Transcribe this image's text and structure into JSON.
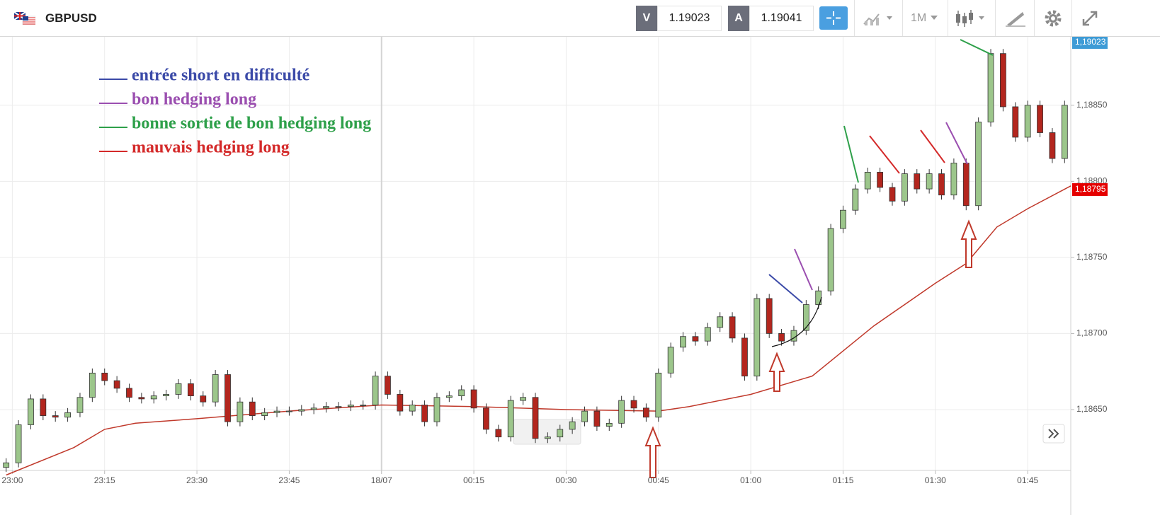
{
  "header": {
    "symbol": "GBPUSD",
    "sell_label": "V",
    "sell_price": "1.19023",
    "buy_label": "A",
    "buy_price": "1.19041",
    "timeframe": "1M"
  },
  "chart_data": {
    "type": "candlestick",
    "x": [
      "22:59",
      "23:01",
      "23:03",
      "23:05",
      "23:07",
      "23:09",
      "23:11",
      "23:13",
      "23:15",
      "23:17",
      "23:19",
      "23:21",
      "23:23",
      "23:25",
      "23:27",
      "23:29",
      "23:31",
      "23:33",
      "23:35",
      "23:37",
      "23:39",
      "23:41",
      "23:43",
      "23:45",
      "23:47",
      "23:49",
      "23:51",
      "23:53",
      "23:55",
      "23:57",
      "23:59",
      "00:01",
      "00:03",
      "00:05",
      "00:07",
      "00:09",
      "00:11",
      "00:13",
      "00:15",
      "00:17",
      "00:19",
      "00:21",
      "00:23",
      "00:25",
      "00:27",
      "00:29",
      "00:31",
      "00:33",
      "00:35",
      "00:37",
      "00:39",
      "00:41",
      "00:43",
      "00:45",
      "00:47",
      "00:49",
      "00:51",
      "00:53",
      "00:55",
      "00:57",
      "00:59",
      "01:01",
      "01:03",
      "01:05",
      "01:07",
      "01:09",
      "01:11",
      "01:13",
      "01:15",
      "01:17",
      "01:19",
      "01:21",
      "01:23",
      "01:25",
      "01:27",
      "01:29",
      "01:31",
      "01:33",
      "01:35",
      "01:37",
      "01:39",
      "01:41",
      "01:43",
      "01:45",
      "01:47",
      "01:49",
      "01:51"
    ],
    "open": [
      1.18612,
      1.18615,
      1.1864,
      1.18657,
      1.18646,
      1.18645,
      1.18648,
      1.18658,
      1.18674,
      1.18669,
      1.18664,
      1.18658,
      1.18657,
      1.18659,
      1.1866,
      1.18667,
      1.18659,
      1.18655,
      1.18673,
      1.18642,
      1.18655,
      1.18646,
      1.18648,
      1.18649,
      1.18649,
      1.1865,
      1.18651,
      1.18652,
      1.18652,
      1.18653,
      1.18653,
      1.18672,
      1.1866,
      1.18649,
      1.18653,
      1.18642,
      1.18658,
      1.18659,
      1.18663,
      1.18651,
      1.18637,
      1.18632,
      1.18656,
      1.18658,
      1.18631,
      1.18632,
      1.18637,
      1.18642,
      1.18649,
      1.18639,
      1.18641,
      1.18656,
      1.18651,
      1.18645,
      1.18674,
      1.18691,
      1.18698,
      1.18695,
      1.18704,
      1.18711,
      1.18697,
      1.18672,
      1.18723,
      1.187,
      1.18695,
      1.18702,
      1.18719,
      1.18728,
      1.18769,
      1.18781,
      1.18795,
      1.18806,
      1.18796,
      1.18787,
      1.18805,
      1.18795,
      1.18805,
      1.18791,
      1.18812,
      1.18784,
      1.18839,
      1.18884,
      1.18849,
      1.18829,
      1.1885,
      1.18832,
      1.18815
    ],
    "high": [
      1.18618,
      1.18643,
      1.1866,
      1.1866,
      1.18649,
      1.18651,
      1.18661,
      1.18677,
      1.18677,
      1.18672,
      1.18667,
      1.18661,
      1.18662,
      1.18663,
      1.1867,
      1.1867,
      1.18662,
      1.18676,
      1.18676,
      1.18658,
      1.18658,
      1.18651,
      1.18652,
      1.18652,
      1.18653,
      1.18654,
      1.18655,
      1.18655,
      1.18656,
      1.18656,
      1.18675,
      1.18675,
      1.18663,
      1.18656,
      1.18656,
      1.18661,
      1.18662,
      1.18666,
      1.18666,
      1.18654,
      1.1864,
      1.18659,
      1.18661,
      1.18661,
      1.18635,
      1.1864,
      1.18645,
      1.18652,
      1.18652,
      1.18644,
      1.18659,
      1.18659,
      1.18654,
      1.18677,
      1.18694,
      1.18701,
      1.18701,
      1.18707,
      1.18714,
      1.18714,
      1.187,
      1.18726,
      1.18726,
      1.18703,
      1.18705,
      1.18722,
      1.18731,
      1.18772,
      1.18784,
      1.18798,
      1.18809,
      1.18809,
      1.18799,
      1.18808,
      1.18808,
      1.18808,
      1.18808,
      1.18815,
      1.18815,
      1.18842,
      1.18887,
      1.18887,
      1.18852,
      1.18853,
      1.18853,
      1.18835,
      1.18853
    ],
    "low": [
      1.18609,
      1.18612,
      1.18637,
      1.18643,
      1.18642,
      1.18642,
      1.18645,
      1.18655,
      1.18666,
      1.18661,
      1.18655,
      1.18654,
      1.18654,
      1.18656,
      1.18657,
      1.18656,
      1.18652,
      1.18652,
      1.18639,
      1.18639,
      1.18643,
      1.18643,
      1.18645,
      1.18646,
      1.18646,
      1.18647,
      1.18648,
      1.18649,
      1.18649,
      1.1865,
      1.1865,
      1.18657,
      1.18646,
      1.18646,
      1.18639,
      1.18639,
      1.18655,
      1.18656,
      1.18648,
      1.18634,
      1.18629,
      1.18629,
      1.18653,
      1.18628,
      1.18628,
      1.18629,
      1.18634,
      1.18639,
      1.18636,
      1.18636,
      1.18638,
      1.18648,
      1.18642,
      1.18642,
      1.18671,
      1.18688,
      1.18692,
      1.18692,
      1.18701,
      1.18694,
      1.18669,
      1.18669,
      1.18697,
      1.18692,
      1.18692,
      1.18699,
      1.18716,
      1.18725,
      1.18766,
      1.18778,
      1.18792,
      1.18793,
      1.18784,
      1.18784,
      1.18792,
      1.18792,
      1.18788,
      1.18788,
      1.18781,
      1.18781,
      1.18836,
      1.18846,
      1.18826,
      1.18826,
      1.18829,
      1.18812,
      1.18812
    ],
    "close": [
      1.18615,
      1.1864,
      1.18657,
      1.18646,
      1.18645,
      1.18648,
      1.18658,
      1.18674,
      1.18669,
      1.18664,
      1.18658,
      1.18657,
      1.18659,
      1.1866,
      1.18667,
      1.18659,
      1.18655,
      1.18673,
      1.18642,
      1.18655,
      1.18646,
      1.18648,
      1.18649,
      1.18649,
      1.1865,
      1.18651,
      1.18652,
      1.18652,
      1.18653,
      1.18653,
      1.18672,
      1.1866,
      1.18649,
      1.18653,
      1.18642,
      1.18658,
      1.18659,
      1.18663,
      1.18651,
      1.18637,
      1.18632,
      1.18656,
      1.18658,
      1.18631,
      1.18632,
      1.18637,
      1.18642,
      1.18649,
      1.18639,
      1.18641,
      1.18656,
      1.18651,
      1.18645,
      1.18674,
      1.18691,
      1.18698,
      1.18695,
      1.18704,
      1.18711,
      1.18697,
      1.18672,
      1.18723,
      1.187,
      1.18695,
      1.18702,
      1.18719,
      1.18728,
      1.18769,
      1.18781,
      1.18795,
      1.18806,
      1.18796,
      1.18787,
      1.18805,
      1.18795,
      1.18805,
      1.18791,
      1.18812,
      1.18784,
      1.18839,
      1.18884,
      1.18849,
      1.18829,
      1.1885,
      1.18832,
      1.18815,
      1.1885
    ],
    "up_color": "#9cc68b",
    "down_color": "#b3261e",
    "moving_average": {
      "color": "#c0392b",
      "x": [
        "22:59",
        "23:10",
        "23:15",
        "23:20",
        "23:30",
        "23:45",
        "00:00",
        "00:15",
        "00:30",
        "00:45",
        "00:50",
        "01:00",
        "01:10",
        "01:20",
        "01:30",
        "01:35",
        "01:40",
        "01:45",
        "01:52"
      ],
      "values": [
        1.18607,
        1.18625,
        1.18637,
        1.18641,
        1.18644,
        1.18649,
        1.18653,
        1.18652,
        1.1865,
        1.18649,
        1.18652,
        1.1866,
        1.18672,
        1.18705,
        1.18733,
        1.18746,
        1.1877,
        1.18782,
        1.18797
      ]
    },
    "xlim": [
      "22:58",
      "01:52"
    ],
    "xticks": [
      "23:00",
      "23:15",
      "23:30",
      "23:45",
      {
        "value": "00:00",
        "label": "18/07"
      },
      "00:15",
      "00:30",
      "00:45",
      "01:00",
      "01:15",
      "01:30",
      "01:45"
    ],
    "ylim": [
      1.1861,
      1.18895
    ],
    "yticks": [
      {
        "value": 1.1865,
        "label": "1,18650"
      },
      {
        "value": 1.187,
        "label": "1,18700"
      },
      {
        "value": 1.1875,
        "label": "1,18750"
      },
      {
        "value": 1.188,
        "label": "1,18800"
      },
      {
        "value": 1.1885,
        "label": "1,18850"
      }
    ],
    "grid": true,
    "price_tags": [
      {
        "label": "1,19023",
        "color": "#3d9bd6"
      },
      {
        "label": "1,18795",
        "color": "#e50000"
      }
    ],
    "annotations": [
      {
        "text": "entrée short en difficulté",
        "color": "#3b4aa8"
      },
      {
        "text": "bon hedging long",
        "color": "#9b4fb0"
      },
      {
        "text": "bonne sortie de bon hedging long",
        "color": "#2ea04a"
      },
      {
        "text": "mauvais hedging long",
        "color": "#d42a2a"
      }
    ]
  }
}
